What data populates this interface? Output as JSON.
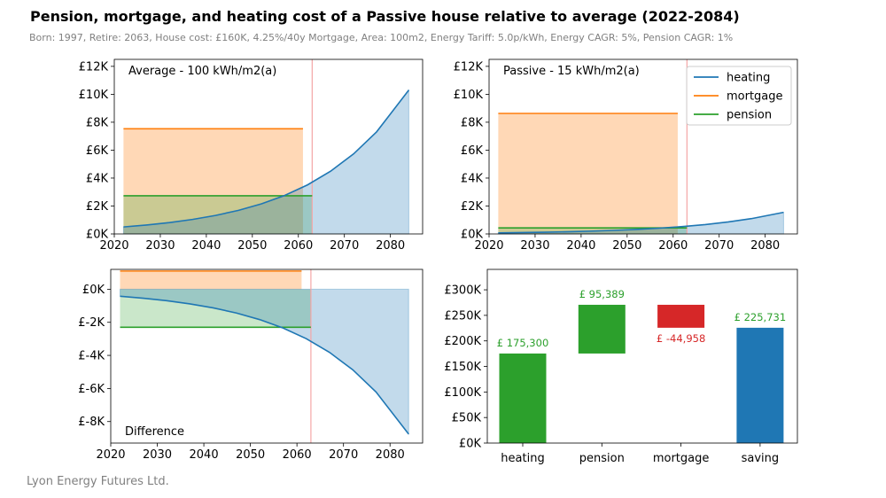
{
  "title": "Pension, mortgage, and heating cost of a Passive house relative to average (2022-2084)",
  "subtitle": "Born: 1997, Retire: 2063, House cost: £160K, 4.25%/40y Mortgage, Area: 100m2, Energy Tariff: 5.0p/kWh, Energy CAGR: 5%, Pension CAGR: 1%",
  "footer": "Lyon Energy Futures Ltd.",
  "colors": {
    "heating": "#1f77b4",
    "mortgage": "#ff7f0e",
    "pension": "#2ca02c",
    "negative": "#d62728",
    "retire_line": "#f4a6a6"
  },
  "chart_data": [
    {
      "type": "line",
      "label": "Average - 100 kWh/m2(a)",
      "xlim": [
        2020,
        2087
      ],
      "ylim": [
        0,
        12500
      ],
      "x_ticks": [
        2020,
        2030,
        2040,
        2050,
        2060,
        2070,
        2080
      ],
      "y_ticks": [
        0,
        2000,
        4000,
        6000,
        8000,
        10000,
        12000
      ],
      "y_tick_labels": [
        "£0K",
        "£2K",
        "£4K",
        "£6K",
        "£8K",
        "£10K",
        "£12K"
      ],
      "retire_year": 2063,
      "series": [
        {
          "key": "heating",
          "x": [
            2022,
            2027,
            2032,
            2037,
            2042,
            2047,
            2052,
            2057,
            2062,
            2067,
            2072,
            2077,
            2084
          ],
          "y": [
            500,
            640,
            815,
            1040,
            1325,
            1690,
            2160,
            2755,
            3515,
            4490,
            5730,
            7310,
            10300
          ]
        },
        {
          "key": "mortgage",
          "x": [
            2022,
            2061
          ],
          "y": [
            7530,
            7530
          ]
        },
        {
          "key": "pension",
          "x": [
            2022,
            2063
          ],
          "y": [
            2730,
            2730
          ]
        }
      ]
    },
    {
      "type": "line",
      "label": "Passive - 15 kWh/m2(a)",
      "xlim": [
        2020,
        2087
      ],
      "ylim": [
        0,
        12500
      ],
      "x_ticks": [
        2020,
        2030,
        2040,
        2050,
        2060,
        2070,
        2080
      ],
      "y_ticks": [
        0,
        2000,
        4000,
        6000,
        8000,
        10000,
        12000
      ],
      "y_tick_labels": [
        "£0K",
        "£2K",
        "£4K",
        "£6K",
        "£8K",
        "£10K",
        "£12K"
      ],
      "retire_year": 2063,
      "legend": {
        "position": "top-right",
        "entries": [
          "heating",
          "mortgage",
          "pension"
        ]
      },
      "series": [
        {
          "key": "heating",
          "name": "heating",
          "x": [
            2022,
            2027,
            2032,
            2037,
            2042,
            2047,
            2052,
            2057,
            2062,
            2067,
            2072,
            2077,
            2084
          ],
          "y": [
            75,
            96,
            122,
            156,
            199,
            253,
            324,
            413,
            527,
            673,
            859,
            1096,
            1545
          ]
        },
        {
          "key": "mortgage",
          "name": "mortgage",
          "x": [
            2022,
            2061
          ],
          "y": [
            8630,
            8630
          ]
        },
        {
          "key": "pension",
          "name": "pension",
          "x": [
            2022,
            2063
          ],
          "y": [
            430,
            430
          ]
        }
      ]
    },
    {
      "type": "line",
      "label": "Difference",
      "xlim": [
        2020,
        2087
      ],
      "ylim": [
        -9300,
        1200
      ],
      "x_ticks": [
        2020,
        2030,
        2040,
        2050,
        2060,
        2070,
        2080
      ],
      "y_ticks": [
        0,
        -2000,
        -4000,
        -6000,
        -8000
      ],
      "y_tick_labels": [
        "£0K",
        "£-2K",
        "£-4K",
        "£-6K",
        "£-8K"
      ],
      "retire_year": 2063,
      "series": [
        {
          "key": "heating",
          "x": [
            2022,
            2027,
            2032,
            2037,
            2042,
            2047,
            2052,
            2057,
            2062,
            2067,
            2072,
            2077,
            2084
          ],
          "y": [
            -425,
            -544,
            -693,
            -884,
            -1126,
            -1437,
            -1836,
            -2342,
            -2988,
            -3817,
            -4871,
            -6214,
            -8755
          ]
        },
        {
          "key": "mortgage",
          "x": [
            2022,
            2061
          ],
          "y": [
            1100,
            1100
          ]
        },
        {
          "key": "pension",
          "x": [
            2022,
            2063
          ],
          "y": [
            -2300,
            -2300
          ]
        }
      ]
    },
    {
      "type": "bar",
      "categories": [
        "heating",
        "pension",
        "mortgage",
        "saving"
      ],
      "ylim": [
        0,
        340000
      ],
      "y_ticks": [
        0,
        50000,
        100000,
        150000,
        200000,
        250000,
        300000
      ],
      "y_tick_labels": [
        "£0K",
        "£50K",
        "£100K",
        "£150K",
        "£200K",
        "£250K",
        "£300K"
      ],
      "bars": [
        {
          "category": "heating",
          "bottom": 0,
          "value": 175300,
          "label": "£ 175,300",
          "color_key": "pension"
        },
        {
          "category": "pension",
          "bottom": 175300,
          "value": 95389,
          "label": "£ 95,389",
          "color_key": "pension"
        },
        {
          "category": "mortgage",
          "bottom": 225731,
          "value": 44958,
          "label": "£ -44,958",
          "color_key": "negative"
        },
        {
          "category": "saving",
          "bottom": 0,
          "value": 225731,
          "label": "£ 225,731",
          "color_key": "heating"
        }
      ]
    }
  ]
}
